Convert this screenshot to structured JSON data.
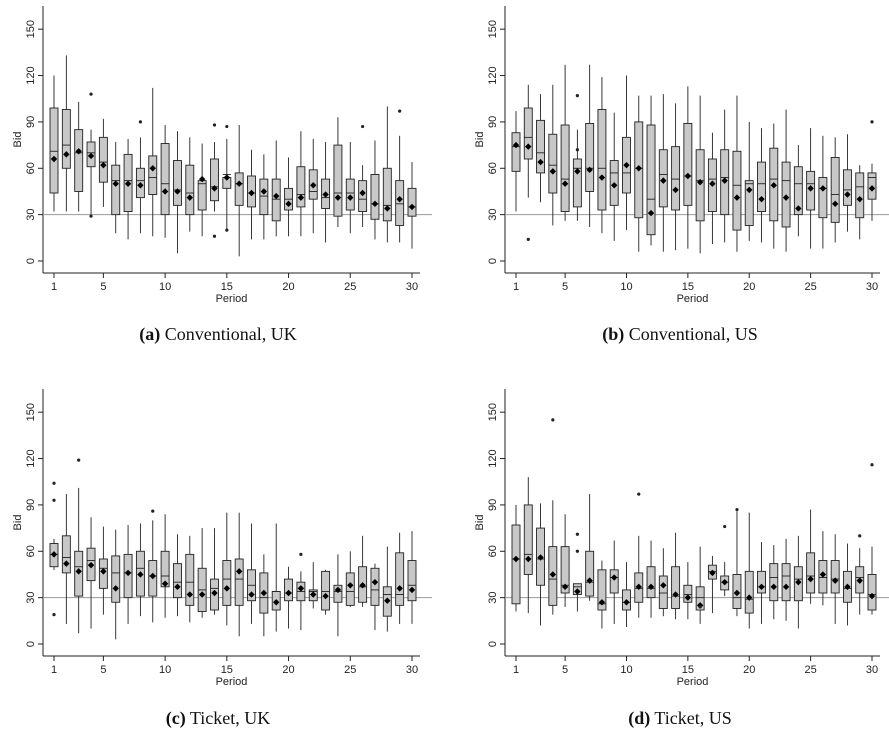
{
  "chart_data": [
    {
      "type": "boxplot",
      "caption_letter": "(a)",
      "caption_text": " Conventional, UK",
      "xlabel": "Period",
      "ylabel": "Bid",
      "xlim": [
        1,
        30
      ],
      "ylim": [
        0,
        165
      ],
      "xticks": [
        1,
        5,
        10,
        15,
        20,
        25,
        30
      ],
      "yticks": [
        0,
        30,
        60,
        90,
        120,
        150
      ],
      "reference_line": 30,
      "periods": [
        1,
        2,
        3,
        4,
        5,
        6,
        7,
        8,
        9,
        10,
        11,
        12,
        13,
        14,
        15,
        16,
        17,
        18,
        19,
        20,
        21,
        22,
        23,
        24,
        25,
        26,
        27,
        28,
        29,
        30
      ],
      "q1": [
        44,
        60,
        45,
        61,
        51,
        30,
        32,
        41,
        43,
        30,
        36,
        30,
        33,
        39,
        47,
        36,
        35,
        30,
        26,
        33,
        35,
        40,
        34,
        29,
        33,
        32,
        27,
        26,
        23,
        29
      ],
      "median": [
        71,
        75,
        70,
        70,
        64,
        52,
        52,
        52,
        54,
        50,
        46,
        44,
        50,
        48,
        56,
        50,
        44,
        42,
        40,
        40,
        43,
        45,
        41,
        44,
        44,
        40,
        37,
        36,
        37,
        35
      ],
      "q3": [
        99,
        98,
        85,
        77,
        80,
        62,
        69,
        60,
        68,
        76,
        65,
        62,
        52,
        66,
        54,
        57,
        55,
        53,
        53,
        47,
        61,
        59,
        53,
        75,
        53,
        52,
        56,
        60,
        52,
        47
      ],
      "whisker_low": [
        32,
        32,
        32,
        30,
        35,
        18,
        14,
        18,
        16,
        15,
        5,
        19,
        16,
        32,
        20,
        3,
        14,
        14,
        16,
        16,
        16,
        18,
        12,
        22,
        18,
        22,
        14,
        12,
        12,
        8
      ],
      "whisker_high": [
        120,
        133,
        103,
        85,
        92,
        77,
        79,
        80,
        112,
        88,
        84,
        80,
        76,
        77,
        79,
        88,
        72,
        69,
        78,
        67,
        84,
        79,
        77,
        93,
        77,
        62,
        78,
        100,
        81,
        64
      ],
      "mean": [
        66,
        69,
        71,
        68,
        62,
        50,
        50,
        49,
        60,
        45,
        45,
        41,
        53,
        47,
        54,
        50,
        44,
        45,
        42,
        37,
        41,
        49,
        43,
        41,
        41,
        44,
        37,
        34,
        40,
        35
      ],
      "outliers": [
        [
          4,
          108
        ],
        [
          4,
          29
        ],
        [
          8,
          90
        ],
        [
          14,
          88
        ],
        [
          14,
          16
        ],
        [
          15,
          87
        ],
        [
          15,
          20
        ],
        [
          26,
          87
        ],
        [
          29,
          97
        ]
      ]
    },
    {
      "type": "boxplot",
      "caption_letter": "(b)",
      "caption_text": " Conventional, US",
      "xlabel": "Period",
      "ylabel": "Bid",
      "xlim": [
        1,
        30
      ],
      "ylim": [
        0,
        165
      ],
      "xticks": [
        1,
        5,
        10,
        15,
        20,
        25,
        30
      ],
      "yticks": [
        0,
        30,
        60,
        90,
        120,
        150
      ],
      "reference_line": 30,
      "periods": [
        1,
        2,
        3,
        4,
        5,
        6,
        7,
        8,
        9,
        10,
        11,
        12,
        13,
        14,
        15,
        16,
        17,
        18,
        19,
        20,
        21,
        22,
        23,
        24,
        25,
        26,
        27,
        28,
        29,
        30
      ],
      "q1": [
        58,
        66,
        57,
        44,
        32,
        35,
        45,
        33,
        36,
        44,
        28,
        17,
        35,
        33,
        36,
        26,
        32,
        30,
        20,
        23,
        32,
        26,
        22,
        30,
        33,
        28,
        25,
        36,
        28,
        40
      ],
      "median": [
        74,
        80,
        70,
        62,
        53,
        60,
        60,
        60,
        57,
        57,
        60,
        40,
        56,
        53,
        55,
        52,
        53,
        54,
        49,
        50,
        50,
        53,
        52,
        50,
        50,
        47,
        43,
        46,
        48,
        54
      ],
      "q3": [
        83,
        99,
        91,
        82,
        88,
        66,
        89,
        98,
        65,
        80,
        90,
        88,
        72,
        74,
        89,
        72,
        66,
        72,
        71,
        52,
        64,
        73,
        64,
        61,
        58,
        54,
        67,
        59,
        57,
        57
      ],
      "whisker_low": [
        32,
        41,
        38,
        23,
        26,
        26,
        22,
        18,
        13,
        20,
        6,
        10,
        6,
        7,
        8,
        5,
        11,
        12,
        6,
        13,
        12,
        8,
        6,
        16,
        8,
        8,
        12,
        19,
        14,
        26
      ],
      "whisker_high": [
        97,
        114,
        108,
        114,
        127,
        85,
        127,
        119,
        96,
        120,
        107,
        107,
        108,
        102,
        113,
        107,
        83,
        98,
        107,
        90,
        86,
        89,
        98,
        75,
        86,
        81,
        80,
        82,
        62,
        63
      ],
      "mean": [
        75,
        74,
        64,
        58,
        50,
        58,
        59,
        54,
        49,
        62,
        60,
        31,
        52,
        46,
        55,
        51,
        50,
        52,
        41,
        46,
        40,
        49,
        41,
        34,
        47,
        47,
        37,
        43,
        40,
        47
      ],
      "outliers": [
        [
          2,
          14
        ],
        [
          6,
          107
        ],
        [
          6,
          72
        ],
        [
          30,
          90
        ]
      ]
    },
    {
      "type": "boxplot",
      "caption_letter": "(c)",
      "caption_text": " Ticket, UK",
      "xlabel": "Period",
      "ylabel": "Bid",
      "xlim": [
        1,
        30
      ],
      "ylim": [
        0,
        165
      ],
      "xticks": [
        1,
        5,
        10,
        15,
        20,
        25,
        30
      ],
      "yticks": [
        0,
        30,
        60,
        90,
        120,
        150
      ],
      "reference_line": 30,
      "periods": [
        1,
        2,
        3,
        4,
        5,
        6,
        7,
        8,
        9,
        10,
        11,
        12,
        13,
        14,
        15,
        16,
        17,
        18,
        19,
        20,
        21,
        22,
        23,
        24,
        25,
        26,
        27,
        28,
        29,
        30
      ],
      "q1": [
        50,
        46,
        31,
        41,
        36,
        27,
        30,
        31,
        31,
        37,
        30,
        25,
        21,
        22,
        25,
        25,
        28,
        20,
        22,
        28,
        28,
        28,
        22,
        27,
        25,
        27,
        25,
        18,
        25,
        28
      ],
      "median": [
        58,
        56,
        50,
        54,
        49,
        46,
        46,
        49,
        44,
        44,
        40,
        40,
        35,
        36,
        42,
        42,
        38,
        30,
        34,
        33,
        34,
        34,
        34,
        34,
        34,
        37,
        35,
        32,
        32,
        38
      ],
      "q3": [
        65,
        70,
        60,
        62,
        55,
        57,
        58,
        60,
        54,
        60,
        52,
        58,
        49,
        42,
        54,
        55,
        48,
        46,
        34,
        42,
        40,
        35,
        47,
        38,
        46,
        50,
        49,
        37,
        59,
        54
      ],
      "whisker_low": [
        48,
        13,
        7,
        10,
        19,
        3,
        13,
        18,
        14,
        17,
        18,
        14,
        17,
        19,
        12,
        5,
        13,
        5,
        8,
        10,
        9,
        23,
        19,
        5,
        24,
        24,
        9,
        8,
        13,
        13
      ],
      "whisker_high": [
        68,
        97,
        101,
        82,
        76,
        74,
        77,
        78,
        80,
        84,
        71,
        70,
        75,
        75,
        85,
        85,
        78,
        58,
        78,
        50,
        47,
        53,
        48,
        58,
        60,
        70,
        52,
        63,
        72,
        73
      ],
      "mean": [
        58,
        52,
        47,
        51,
        47,
        36,
        46,
        45,
        44,
        39,
        37,
        32,
        32,
        33,
        36,
        47,
        32,
        33,
        27,
        33,
        36,
        32,
        31,
        35,
        38,
        38,
        40,
        28,
        36,
        35
      ],
      "outliers": [
        [
          1,
          104
        ],
        [
          1,
          93
        ],
        [
          1,
          19
        ],
        [
          3,
          119
        ],
        [
          9,
          86
        ],
        [
          21,
          58
        ]
      ]
    },
    {
      "type": "boxplot",
      "caption_letter": "(d)",
      "caption_text": " Ticket, US",
      "xlabel": "Period",
      "ylabel": "Bid",
      "xlim": [
        1,
        30
      ],
      "ylim": [
        0,
        165
      ],
      "xticks": [
        1,
        5,
        10,
        15,
        20,
        25,
        30
      ],
      "yticks": [
        0,
        30,
        60,
        90,
        120,
        150
      ],
      "reference_line": 30,
      "periods": [
        1,
        2,
        3,
        4,
        5,
        6,
        7,
        8,
        9,
        10,
        11,
        12,
        13,
        14,
        15,
        16,
        17,
        18,
        19,
        20,
        21,
        22,
        23,
        24,
        25,
        26,
        27,
        28,
        29,
        30
      ],
      "q1": [
        26,
        45,
        38,
        25,
        33,
        32,
        31,
        22,
        33,
        22,
        27,
        30,
        23,
        23,
        27,
        22,
        42,
        35,
        23,
        20,
        33,
        28,
        28,
        28,
        33,
        33,
        33,
        27,
        33,
        22
      ],
      "median": [
        55,
        58,
        55,
        42,
        38,
        37,
        40,
        26,
        43,
        27,
        36,
        36,
        33,
        31,
        32,
        30,
        47,
        40,
        30,
        29,
        37,
        43,
        44,
        42,
        44,
        43,
        42,
        36,
        43,
        32
      ],
      "q3": [
        77,
        90,
        75,
        63,
        63,
        39,
        60,
        48,
        48,
        35,
        46,
        50,
        44,
        50,
        38,
        37,
        51,
        44,
        45,
        47,
        47,
        52,
        52,
        50,
        59,
        54,
        54,
        47,
        50,
        45
      ],
      "whisker_low": [
        21,
        20,
        12,
        19,
        24,
        21,
        28,
        10,
        13,
        11,
        17,
        17,
        18,
        16,
        16,
        13,
        20,
        31,
        18,
        10,
        13,
        16,
        15,
        10,
        26,
        25,
        13,
        12,
        19,
        19
      ],
      "whisker_high": [
        90,
        108,
        91,
        93,
        84,
        35,
        97,
        54,
        67,
        53,
        70,
        67,
        62,
        72,
        53,
        63,
        57,
        53,
        86,
        85,
        66,
        64,
        68,
        70,
        87,
        73,
        71,
        65,
        62,
        63
      ],
      "mean": [
        55,
        55,
        56,
        45,
        37,
        34,
        41,
        27,
        43,
        27,
        37,
        37,
        38,
        32,
        30,
        25,
        46,
        40,
        33,
        30,
        37,
        37,
        37,
        40,
        42,
        45,
        41,
        37,
        41,
        31
      ],
      "outliers": [
        [
          4,
          145
        ],
        [
          6,
          71
        ],
        [
          6,
          60
        ],
        [
          11,
          97
        ],
        [
          16,
          24
        ],
        [
          18,
          76
        ],
        [
          19,
          87
        ],
        [
          29,
          70
        ],
        [
          30,
          116
        ]
      ]
    }
  ],
  "colors": {
    "box_fill": "#c8c8c8",
    "stroke": "#222222",
    "reference_line": "#9a9a9a",
    "mean_marker": "#000000",
    "background": "#ffffff"
  }
}
